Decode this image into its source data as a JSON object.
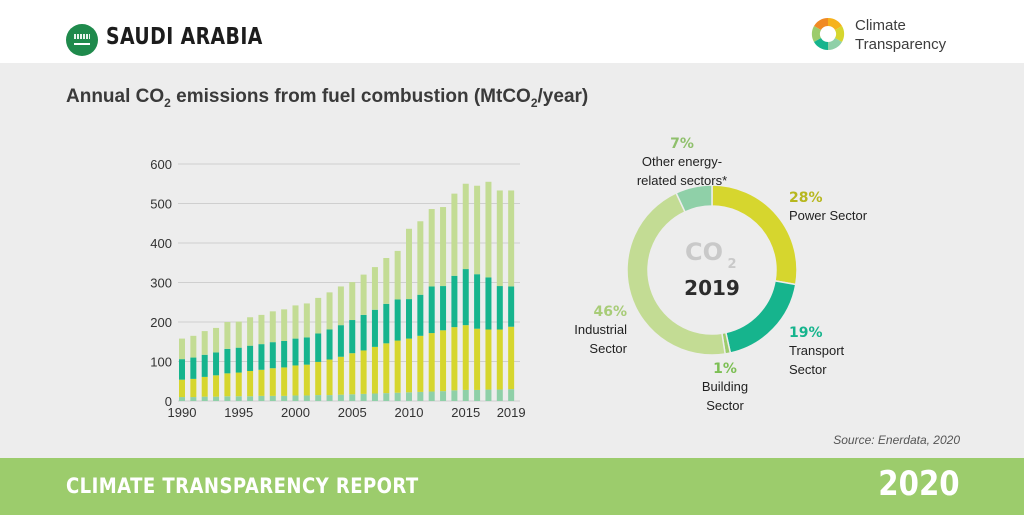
{
  "header": {
    "country": "SAUDI ARABIA",
    "logo_line1": "Climate",
    "logo_line2": "Transparency"
  },
  "title": {
    "part1": "Annual CO",
    "sub1": "2",
    "part2": " emissions from fuel combustion (MtCO",
    "sub2": "2",
    "part3": "/year)"
  },
  "source": "Source: Enerdata, 2020",
  "footer": {
    "report": "CLIMATE TRANSPARENCY REPORT",
    "year": "2020"
  },
  "colors": {
    "building": "#8fd0a8",
    "power": "#d6d62e",
    "transport": "#16b48d",
    "industrial": "#c3dc94",
    "other": "#8fd0a8",
    "footer": "#9ccc6c"
  },
  "chart_data": [
    {
      "type": "bar",
      "stacked": true,
      "categories": [
        "1990",
        "1991",
        "1992",
        "1993",
        "1994",
        "1995",
        "1996",
        "1997",
        "1998",
        "1999",
        "2000",
        "2001",
        "2002",
        "2003",
        "2004",
        "2005",
        "2006",
        "2007",
        "2008",
        "2009",
        "2010",
        "2011",
        "2012",
        "2013",
        "2014",
        "2015",
        "2016",
        "2017",
        "2018",
        "2019"
      ],
      "x_tick_labels": [
        "1990",
        "1995",
        "2000",
        "2005",
        "2010",
        "2015",
        "2019"
      ],
      "y_ticks": [
        "0",
        "100",
        "200",
        "300",
        "400",
        "500",
        "600"
      ],
      "ylim": [
        0,
        600
      ],
      "grid": true,
      "series": [
        {
          "values": [
            10,
            10,
            11,
            11,
            12,
            12,
            12,
            13,
            13,
            13,
            14,
            14,
            15,
            15,
            16,
            17,
            18,
            19,
            20,
            21,
            22,
            23,
            24,
            25,
            27,
            28,
            28,
            29,
            29,
            30
          ]
        },
        {
          "values": [
            44,
            46,
            50,
            54,
            58,
            60,
            64,
            66,
            70,
            72,
            76,
            78,
            84,
            90,
            96,
            104,
            110,
            118,
            126,
            132,
            136,
            142,
            148,
            154,
            160,
            164,
            155,
            152,
            152,
            158
          ]
        },
        {
          "values": [
            52,
            54,
            56,
            58,
            62,
            63,
            64,
            65,
            66,
            67,
            68,
            69,
            72,
            76,
            80,
            84,
            90,
            94,
            100,
            104,
            100,
            104,
            118,
            112,
            130,
            142,
            138,
            132,
            110,
            102
          ]
        },
        {
          "values": [
            52,
            55,
            60,
            62,
            68,
            66,
            72,
            74,
            78,
            80,
            84,
            86,
            90,
            94,
            98,
            96,
            102,
            108,
            116,
            123,
            178,
            186,
            196,
            200,
            208,
            216,
            224,
            242,
            242,
            243
          ]
        }
      ]
    },
    {
      "type": "pie",
      "center_title": "CO",
      "center_sub": "2",
      "center_year": "2019",
      "slices": [
        {
          "pct": 28,
          "pct_label": "28%",
          "label_lines": [
            "Power Sector"
          ]
        },
        {
          "pct": 19,
          "pct_label": "19%",
          "label_lines": [
            "Transport",
            "Sector"
          ]
        },
        {
          "pct": 1,
          "pct_label": "1%",
          "label_lines": [
            "Building",
            "Sector"
          ]
        },
        {
          "pct": 46,
          "pct_label": "46%",
          "label_lines": [
            "Industrial",
            "Sector"
          ]
        },
        {
          "pct": 7,
          "pct_label": "7%",
          "label_lines": [
            "Other energy-",
            "related sectors*"
          ]
        }
      ]
    }
  ]
}
